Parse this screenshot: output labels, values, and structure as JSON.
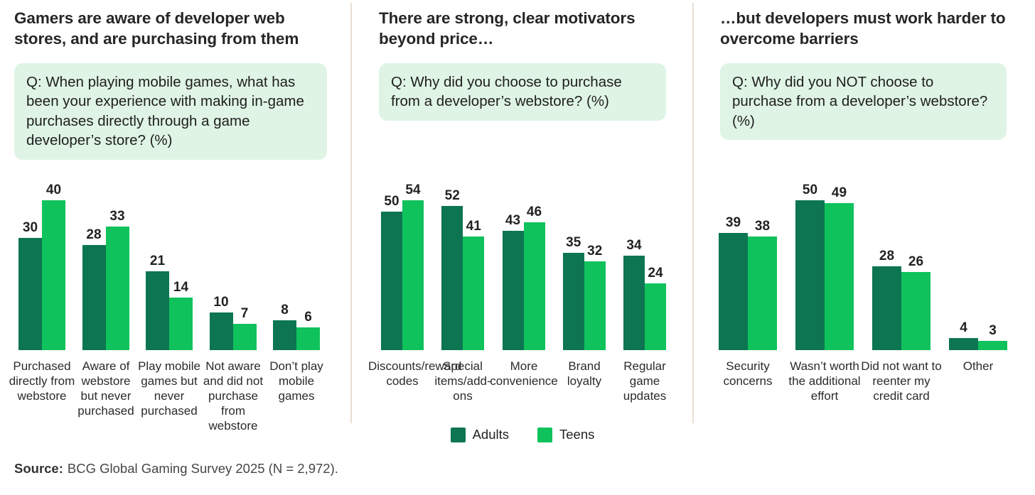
{
  "colors": {
    "adults": "#0D7552",
    "teens": "#0FC25C",
    "question_bg": "#DFF4E5",
    "divider": "#E8DED3",
    "title_text": "#262626",
    "value_text": "#222222",
    "source_text": "#454545"
  },
  "legend": {
    "position": "bottom-center",
    "items": [
      {
        "label": "Adults",
        "color": "#0D7552"
      },
      {
        "label": "Teens",
        "color": "#0FC25C"
      }
    ]
  },
  "source": {
    "label": "Source:",
    "text": "BCG Global Gaming Survey 2025 (N = 2,972)."
  },
  "chart_data": [
    {
      "type": "bar",
      "title": "Gamers are aware of developer web stores, and are purchasing from them",
      "question": "Q: When playing mobile games, what has been your experience with making in-game purchases directly through a game developer’s store? (%)",
      "categories": [
        "Purchased directly from webstore",
        "Aware of webstore but never purchased",
        "Play mobile games but never purchased",
        "Not aware and did not purchase from webstore",
        "Don’t play mobile games"
      ],
      "series": [
        {
          "name": "Adults",
          "values": [
            30,
            28,
            21,
            10,
            8
          ]
        },
        {
          "name": "Teens",
          "values": [
            40,
            33,
            14,
            7,
            6
          ]
        }
      ],
      "unit": "%",
      "ylim": [
        0,
        40
      ],
      "grid": false,
      "value_labels": true
    },
    {
      "type": "bar",
      "title": "There are strong, clear motivators beyond price…",
      "question": "Q: Why did you choose to purchase from a developer’s webstore? (%)",
      "categories": [
        "Discounts/reward codes",
        "Special items/add-ons",
        "More convenience",
        "Brand loyalty",
        "Regular game updates"
      ],
      "series": [
        {
          "name": "Adults",
          "values": [
            50,
            52,
            43,
            35,
            34
          ]
        },
        {
          "name": "Teens",
          "values": [
            54,
            41,
            46,
            32,
            24
          ]
        }
      ],
      "unit": "%",
      "ylim": [
        0,
        54
      ],
      "grid": false,
      "value_labels": true
    },
    {
      "type": "bar",
      "title": "…but developers must work harder to overcome barriers",
      "question": "Q: Why did you NOT choose to purchase from a developer’s webstore? (%)",
      "categories": [
        "Security concerns",
        "Wasn’t worth the additional effort",
        "Did not want to reenter my credit card",
        "Other"
      ],
      "series": [
        {
          "name": "Adults",
          "values": [
            39,
            50,
            28,
            4
          ]
        },
        {
          "name": "Teens",
          "values": [
            38,
            49,
            26,
            3
          ]
        }
      ],
      "unit": "%",
      "ylim": [
        0,
        50
      ],
      "grid": false,
      "value_labels": true
    }
  ]
}
